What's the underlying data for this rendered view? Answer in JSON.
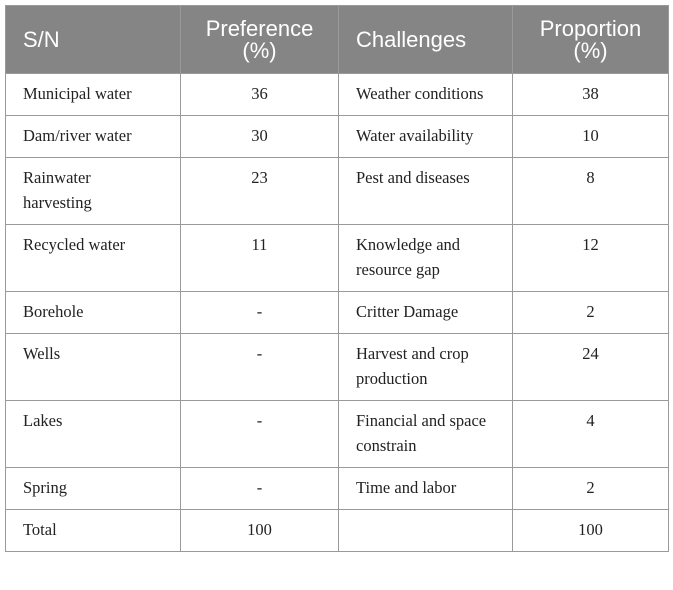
{
  "table": {
    "header": [
      "S/N",
      "Preference (%)",
      "Challenges",
      "Proportion (%)"
    ],
    "rows": [
      [
        "Municipal water",
        "36",
        "Weather conditions",
        "38"
      ],
      [
        "Dam/river water",
        "30",
        "Water availability",
        "10"
      ],
      [
        "Rainwater harvesting",
        "23",
        "Pest and diseases",
        "8"
      ],
      [
        "Recycled water",
        "11",
        "Knowledge and resource gap",
        "12"
      ],
      [
        "Borehole",
        "-",
        "Critter Damage",
        "2"
      ],
      [
        "Wells",
        "-",
        "Harvest and crop production",
        "24"
      ],
      [
        "Lakes",
        "-",
        "Financial and space constrain",
        "4"
      ],
      [
        "Spring",
        "-",
        "Time and labor",
        "2"
      ],
      [
        "Total",
        "100",
        null,
        "100"
      ]
    ]
  }
}
